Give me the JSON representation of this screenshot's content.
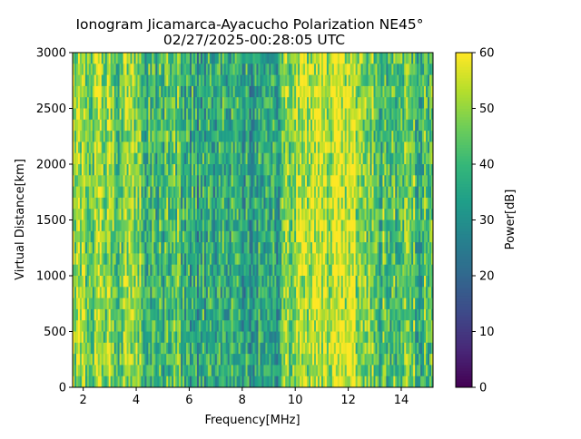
{
  "chart_data": {
    "type": "heatmap",
    "title": "Ionogram Jicamarca-Ayacucho Polarization NE45°",
    "subtitle": "02/27/2025-00:28:05 UTC",
    "xlabel": "Frequency[MHz]",
    "ylabel": "Virtual Distance[km]",
    "xlim": [
      1.6,
      15.2
    ],
    "ylim": [
      0,
      3000
    ],
    "xticks": [
      2,
      4,
      6,
      8,
      10,
      12,
      14
    ],
    "xtick_labels": [
      "2",
      "4",
      "6",
      "8",
      "10",
      "12",
      "14"
    ],
    "yticks": [
      0,
      500,
      1000,
      1500,
      2000,
      2500,
      3000
    ],
    "ytick_labels": [
      "0",
      "500",
      "1000",
      "1500",
      "2000",
      "2500",
      "3000"
    ],
    "colorbar": {
      "label": "Power[dB]",
      "range": [
        0,
        60
      ],
      "ticks": [
        0,
        10,
        20,
        30,
        40,
        50,
        60
      ],
      "tick_labels": [
        "0",
        "10",
        "20",
        "30",
        "40",
        "50",
        "60"
      ],
      "colormap": "viridis"
    },
    "mean_power_bands_db": [
      {
        "from": 1.6,
        "to": 2.4,
        "value": 50
      },
      {
        "from": 2.4,
        "to": 2.7,
        "value": 56
      },
      {
        "from": 2.7,
        "to": 3.5,
        "value": 48
      },
      {
        "from": 3.5,
        "to": 4.2,
        "value": 50
      },
      {
        "from": 4.2,
        "to": 6.0,
        "value": 41
      },
      {
        "from": 6.0,
        "to": 9.4,
        "value": 36
      },
      {
        "from": 9.4,
        "to": 10.0,
        "value": 46
      },
      {
        "from": 10.0,
        "to": 10.6,
        "value": 51
      },
      {
        "from": 10.6,
        "to": 12.3,
        "value": 56
      },
      {
        "from": 12.3,
        "to": 13.0,
        "value": 49
      },
      {
        "from": 13.0,
        "to": 15.2,
        "value": 43
      }
    ]
  }
}
